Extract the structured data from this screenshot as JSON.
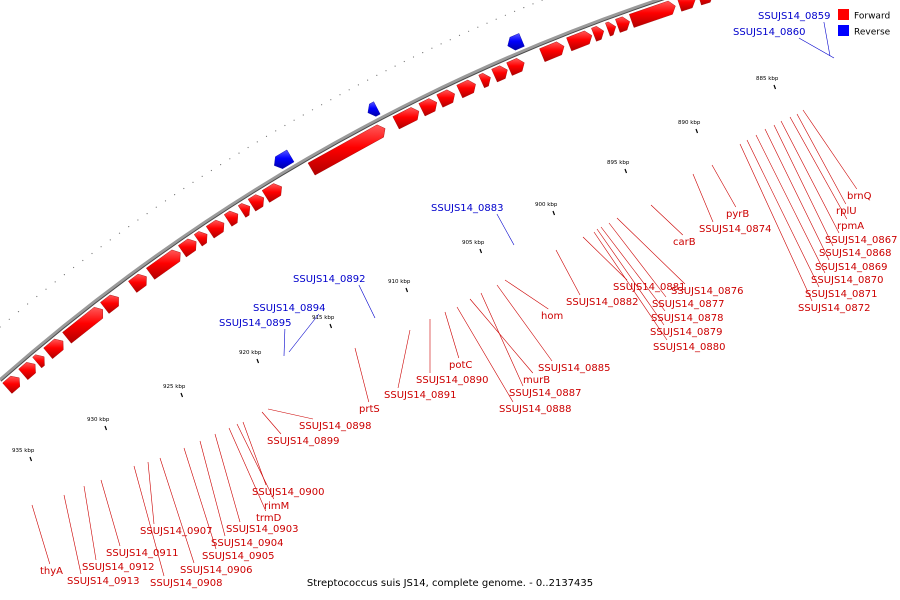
{
  "legend": [
    {
      "label": "Forward",
      "color": "#ff0000"
    },
    {
      "label": "Reverse",
      "color": "#0000ff"
    }
  ],
  "caption": "Streptococcus suis JS14, complete genome. - 0..2137435",
  "colors": {
    "forward": "#ff0000",
    "reverse": "#0000ff",
    "forward_label": "#cc0000",
    "reverse_label": "#0000cc",
    "backbone": "#9a9a9a"
  },
  "ticks": [
    "885 kbp",
    "890 kbp",
    "895 kbp",
    "900 kbp",
    "905 kbp",
    "910 kbp",
    "915 kbp",
    "920 kbp",
    "925 kbp",
    "930 kbp",
    "935 kbp"
  ],
  "genes": [
    {
      "name": "SSUJS14_0859",
      "strand": "reverse"
    },
    {
      "name": "SSUJS14_0860",
      "strand": "reverse"
    },
    {
      "name": "brnQ",
      "strand": "forward"
    },
    {
      "name": "rplU",
      "strand": "forward"
    },
    {
      "name": "rpmA",
      "strand": "forward"
    },
    {
      "name": "SSUJS14_0867",
      "strand": "forward"
    },
    {
      "name": "SSUJS14_0868",
      "strand": "forward"
    },
    {
      "name": "SSUJS14_0869",
      "strand": "forward"
    },
    {
      "name": "SSUJS14_0870",
      "strand": "forward"
    },
    {
      "name": "SSUJS14_0871",
      "strand": "forward"
    },
    {
      "name": "SSUJS14_0872",
      "strand": "forward"
    },
    {
      "name": "pyrB",
      "strand": "forward"
    },
    {
      "name": "SSUJS14_0874",
      "strand": "forward"
    },
    {
      "name": "carB",
      "strand": "forward"
    },
    {
      "name": "SSUJS14_0876",
      "strand": "forward"
    },
    {
      "name": "SSUJS14_0877",
      "strand": "forward"
    },
    {
      "name": "SSUJS14_0878",
      "strand": "forward"
    },
    {
      "name": "SSUJS14_0879",
      "strand": "forward"
    },
    {
      "name": "SSUJS14_0880",
      "strand": "forward"
    },
    {
      "name": "SSUJS14_0881",
      "strand": "forward"
    },
    {
      "name": "SSUJS14_0882",
      "strand": "forward"
    },
    {
      "name": "SSUJS14_0883",
      "strand": "reverse"
    },
    {
      "name": "hom",
      "strand": "forward"
    },
    {
      "name": "SSUJS14_0885",
      "strand": "forward"
    },
    {
      "name": "SSUJS14_0887",
      "strand": "forward"
    },
    {
      "name": "murB",
      "strand": "forward"
    },
    {
      "name": "SSUJS14_0888",
      "strand": "forward"
    },
    {
      "name": "potC",
      "strand": "forward"
    },
    {
      "name": "SSUJS14_0890",
      "strand": "forward"
    },
    {
      "name": "SSUJS14_0891",
      "strand": "forward"
    },
    {
      "name": "SSUJS14_0892",
      "strand": "reverse"
    },
    {
      "name": "SSUJS14_0894",
      "strand": "reverse"
    },
    {
      "name": "SSUJS14_0895",
      "strand": "reverse"
    },
    {
      "name": "prtS",
      "strand": "forward"
    },
    {
      "name": "SSUJS14_0898",
      "strand": "forward"
    },
    {
      "name": "SSUJS14_0899",
      "strand": "forward"
    },
    {
      "name": "SSUJS14_0900",
      "strand": "forward"
    },
    {
      "name": "rimM",
      "strand": "forward"
    },
    {
      "name": "trmD",
      "strand": "forward"
    },
    {
      "name": "SSUJS14_0903",
      "strand": "forward"
    },
    {
      "name": "SSUJS14_0904",
      "strand": "forward"
    },
    {
      "name": "SSUJS14_0905",
      "strand": "forward"
    },
    {
      "name": "SSUJS14_0906",
      "strand": "forward"
    },
    {
      "name": "SSUJS14_0907",
      "strand": "forward"
    },
    {
      "name": "SSUJS14_0908",
      "strand": "forward"
    },
    {
      "name": "SSUJS14_0911",
      "strand": "forward"
    },
    {
      "name": "SSUJS14_0912",
      "strand": "forward"
    },
    {
      "name": "SSUJS14_0913",
      "strand": "forward"
    },
    {
      "name": "thyA",
      "strand": "forward"
    }
  ]
}
